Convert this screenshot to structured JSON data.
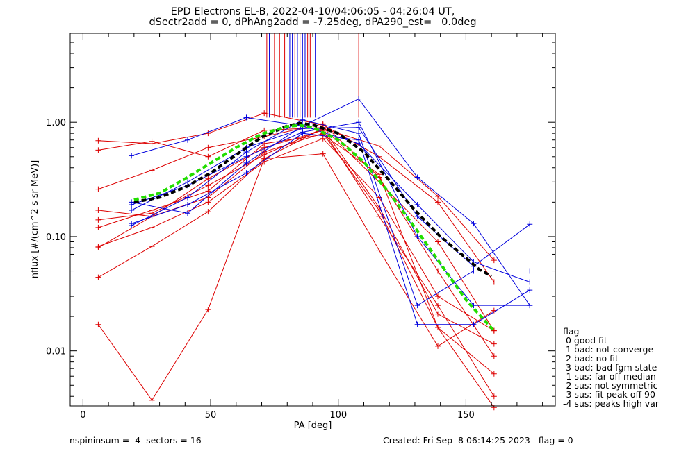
{
  "header": {
    "line1": "EPD Electrons EL-B, 2022-04-10/04:06:05 - 04:26:04 UT,",
    "line2": "dSectr2add = 0, dPhAng2add = -7.25deg, dPA290_est=   0.0deg"
  },
  "footer": {
    "left": "nspininsum =  4  sectors = 16",
    "right": "Created: Fri Sep  8 06:14:25 2023   flag = 0"
  },
  "legend": {
    "title": "flag",
    "items": [
      " 0 good fit",
      " 1 bad: not converge",
      " 2 bad: no fit",
      " 3 bad: bad fgm state",
      "-1 sus: far off median",
      "-2 sus: not symmetric",
      "-3 sus: fit peak off 90",
      "-4 sus: peaks high var"
    ]
  },
  "chart_data": {
    "type": "line",
    "xlabel": "PA [deg]",
    "ylabel": "nflux [#/(cm^2 s sr MeV)]",
    "xlim": [
      -5,
      185
    ],
    "ylim": [
      0.0033,
      6.0
    ],
    "yscale": "log",
    "x_ticks": [
      0,
      50,
      100,
      150
    ],
    "x_tick_labels": [
      "0",
      "50",
      "100",
      "150"
    ],
    "y_ticks": [
      0.01,
      0.1,
      1.0
    ],
    "y_tick_labels": [
      "0.01",
      "0.10",
      "1.00"
    ],
    "colors": {
      "red": "#dd0000",
      "blue": "#0000dd",
      "black": "#000000",
      "green": "#22dd00"
    },
    "red_series": [
      {
        "x": [
          6,
          27,
          49,
          71,
          94,
          116,
          139,
          161
        ],
        "y": [
          0.69,
          0.65,
          0.8,
          1.2,
          0.95,
          0.5,
          0.2,
          0.04
        ]
      },
      {
        "x": [
          6,
          27,
          49,
          71,
          94,
          116,
          139,
          161
        ],
        "y": [
          0.57,
          0.68,
          0.5,
          0.85,
          0.9,
          0.3,
          0.09,
          0.015
        ]
      },
      {
        "x": [
          6,
          27,
          49,
          71,
          94,
          116,
          139,
          161
        ],
        "y": [
          0.26,
          0.38,
          0.6,
          0.75,
          0.97,
          0.33,
          0.05,
          0.009
        ]
      },
      {
        "x": [
          6,
          27,
          49,
          71,
          94,
          116,
          139,
          161
        ],
        "y": [
          0.17,
          0.15,
          0.32,
          0.6,
          0.85,
          0.15,
          0.025,
          0.004
        ]
      },
      {
        "x": [
          6,
          27,
          49,
          71,
          94,
          116,
          139,
          161
        ],
        "y": [
          0.14,
          0.16,
          0.28,
          0.52,
          0.88,
          0.18,
          0.021,
          0.0115
        ]
      },
      {
        "x": [
          6,
          27,
          49,
          71,
          94,
          116,
          139,
          161
        ],
        "y": [
          0.12,
          0.17,
          0.25,
          0.65,
          0.78,
          0.35,
          0.016,
          0.0063
        ]
      },
      {
        "x": [
          6,
          27,
          49,
          71,
          94,
          116,
          139,
          161
        ],
        "y": [
          0.08,
          0.15,
          0.22,
          0.55,
          0.8,
          0.17,
          0.016,
          0.0032
        ]
      },
      {
        "x": [
          6,
          27,
          49,
          71,
          94,
          116,
          139,
          161
        ],
        "y": [
          0.044,
          0.082,
          0.165,
          0.48,
          0.53,
          0.076,
          0.011,
          0.0225
        ]
      },
      {
        "x": [
          6,
          27,
          49,
          71,
          94,
          116,
          139,
          161
        ],
        "y": [
          0.017,
          0.0037,
          0.023,
          0.48,
          0.88,
          0.62,
          0.225,
          0.062
        ]
      },
      {
        "x": [
          6,
          27,
          49,
          71,
          94,
          116,
          139,
          161
        ],
        "y": [
          0.082,
          0.12,
          0.2,
          0.45,
          0.72,
          0.22,
          0.03,
          0.015
        ]
      }
    ],
    "blue_series": [
      {
        "x": [
          19,
          41,
          64,
          86,
          108,
          131,
          153,
          175
        ],
        "y": [
          0.51,
          0.7,
          1.1,
          0.93,
          1.6,
          0.33,
          0.13,
          0.025
        ]
      },
      {
        "x": [
          19,
          41,
          64,
          86,
          108,
          131,
          153,
          175
        ],
        "y": [
          0.19,
          0.28,
          0.5,
          0.82,
          1.0,
          0.1,
          0.025,
          0.025
        ]
      },
      {
        "x": [
          19,
          41,
          64,
          86,
          108,
          131,
          153,
          175
        ],
        "y": [
          0.13,
          0.19,
          0.36,
          0.8,
          0.7,
          0.017,
          0.017,
          0.034
        ]
      },
      {
        "x": [
          19,
          41,
          64,
          86,
          108,
          131,
          153,
          175
        ],
        "y": [
          0.2,
          0.16,
          0.44,
          0.93,
          0.65,
          0.19,
          0.06,
          0.04
        ]
      },
      {
        "x": [
          19,
          41,
          64,
          86,
          108,
          131,
          153,
          175
        ],
        "y": [
          0.125,
          0.22,
          0.55,
          1.05,
          0.8,
          0.025,
          0.05,
          0.05
        ]
      },
      {
        "x": [
          19,
          41,
          64,
          86,
          108,
          131,
          153,
          175
        ],
        "y": [
          0.17,
          0.3,
          0.6,
          0.88,
          0.9,
          0.15,
          0.055,
          0.128
        ]
      }
    ],
    "fit_black": {
      "x": [
        20,
        30,
        40,
        50,
        60,
        70,
        80,
        85,
        90,
        100,
        110,
        120,
        130,
        140,
        150,
        155,
        160
      ],
      "y": [
        0.2,
        0.22,
        0.27,
        0.36,
        0.52,
        0.74,
        0.93,
        0.98,
        0.95,
        0.8,
        0.55,
        0.31,
        0.17,
        0.1,
        0.065,
        0.052,
        0.045
      ]
    },
    "fit_green": {
      "x": [
        20,
        30,
        40,
        50,
        60,
        70,
        80,
        85,
        90,
        100,
        110,
        120,
        130,
        140,
        150,
        155,
        161
      ],
      "y": [
        0.21,
        0.24,
        0.32,
        0.44,
        0.6,
        0.79,
        0.92,
        0.94,
        0.9,
        0.7,
        0.45,
        0.24,
        0.12,
        0.058,
        0.028,
        0.021,
        0.015
      ]
    },
    "spikes": [
      {
        "x": 72,
        "color": "red"
      },
      {
        "x": 73,
        "color": "blue"
      },
      {
        "x": 75,
        "color": "red"
      },
      {
        "x": 77,
        "color": "red"
      },
      {
        "x": 79,
        "color": "red"
      },
      {
        "x": 81,
        "color": "blue"
      },
      {
        "x": 82,
        "color": "blue"
      },
      {
        "x": 83,
        "color": "red"
      },
      {
        "x": 84,
        "color": "blue"
      },
      {
        "x": 85,
        "color": "red"
      },
      {
        "x": 86,
        "color": "blue"
      },
      {
        "x": 87,
        "color": "blue"
      },
      {
        "x": 88,
        "color": "red"
      },
      {
        "x": 89,
        "color": "red"
      },
      {
        "x": 91,
        "color": "blue"
      },
      {
        "x": 108,
        "color": "red"
      }
    ],
    "spike_base": 1.1
  }
}
